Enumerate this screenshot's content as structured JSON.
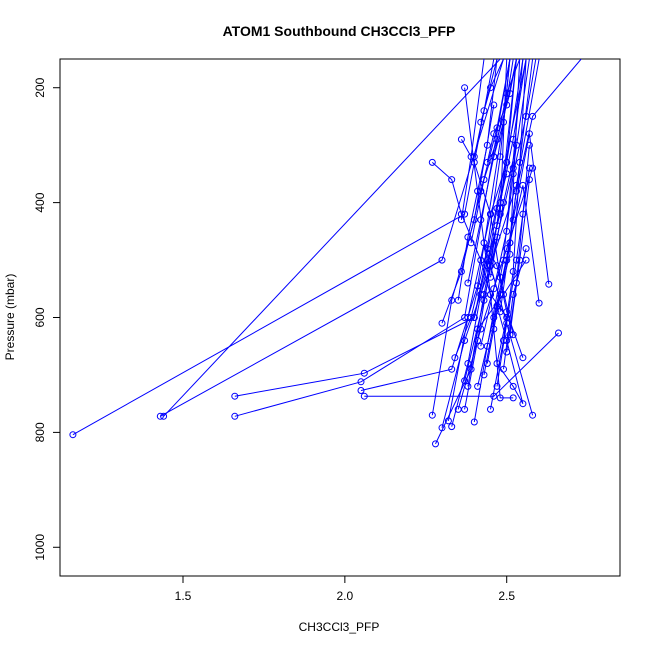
{
  "chart_data": {
    "type": "line",
    "title": "ATOM1 Southbound CH3CCl3_PFP",
    "xlabel": "CH3CCl3_PFP",
    "ylabel": "Pressure (mbar)",
    "xlim": [
      1.12,
      2.85
    ],
    "ylim": [
      1050,
      150
    ],
    "y_reversed": true,
    "x_ticks": [
      "1.5",
      "2.0",
      "2.5"
    ],
    "y_ticks": [
      "200",
      "400",
      "600",
      "800",
      "1000"
    ],
    "grid": false,
    "legend": "none",
    "series_color": "#0000ff",
    "series": [
      {
        "x": [
          2.27,
          2.33,
          2.36,
          2.42,
          2.45,
          2.5,
          2.47,
          2.52,
          2.55,
          2.5,
          2.47
        ],
        "y": [
          330,
          360,
          420,
          500,
          560,
          600,
          680,
          720,
          750,
          640,
          580
        ]
      },
      {
        "x": [
          1.16,
          2.37,
          2.46
        ],
        "y": [
          804,
          420,
          150
        ]
      },
      {
        "x": [
          1.43,
          2.3,
          2.49
        ],
        "y": [
          772,
          500,
          150
        ]
      },
      {
        "x": [
          1.44,
          2.48
        ],
        "y": [
          772,
          150
        ]
      },
      {
        "x": [
          1.66,
          2.05,
          2.37,
          2.51
        ],
        "y": [
          772,
          712,
          600,
          150
        ]
      },
      {
        "x": [
          1.66,
          2.06,
          2.4,
          2.56
        ],
        "y": [
          737,
          697,
          600,
          150
        ]
      },
      {
        "x": [
          2.05,
          2.33,
          2.41,
          2.52
        ],
        "y": [
          727,
          690,
          545,
          150
        ]
      },
      {
        "x": [
          2.06,
          2.46,
          2.66
        ],
        "y": [
          737,
          737,
          627
        ]
      },
      {
        "x": [
          2.28,
          2.39,
          2.43,
          2.48,
          2.53
        ],
        "y": [
          820,
          690,
          560,
          410,
          150
        ]
      },
      {
        "x": [
          2.3,
          2.37,
          2.45,
          2.53,
          2.6
        ],
        "y": [
          792,
          640,
          510,
          370,
          150
        ]
      },
      {
        "x": [
          2.27,
          2.33,
          2.4,
          2.46
        ],
        "y": [
          770,
          570,
          430,
          230
        ]
      },
      {
        "x": [
          2.32,
          2.38,
          2.45,
          2.5,
          2.55
        ],
        "y": [
          780,
          600,
          420,
          330,
          150
        ]
      },
      {
        "x": [
          2.3,
          2.36,
          2.42,
          2.47,
          2.51
        ],
        "y": [
          610,
          520,
          380,
          270,
          150
        ]
      },
      {
        "x": [
          2.35,
          2.42,
          2.5,
          2.58
        ],
        "y": [
          760,
          620,
          480,
          340
        ]
      },
      {
        "x": [
          2.37,
          2.43,
          2.47,
          2.52,
          2.57
        ],
        "y": [
          710,
          570,
          460,
          340,
          150
        ]
      },
      {
        "x": [
          2.4,
          2.44,
          2.49,
          2.55
        ],
        "y": [
          782,
          650,
          500,
          150
        ]
      },
      {
        "x": [
          2.41,
          2.46,
          2.51,
          2.54,
          2.58
        ],
        "y": [
          720,
          600,
          470,
          330,
          150
        ]
      },
      {
        "x": [
          2.44,
          2.48,
          2.52,
          2.57,
          2.63
        ],
        "y": [
          680,
          560,
          430,
          280,
          542
        ]
      },
      {
        "x": [
          2.46,
          2.5,
          2.53,
          2.58,
          2.73
        ],
        "y": [
          620,
          500,
          380,
          250,
          150
        ]
      },
      {
        "x": [
          2.48,
          2.51,
          2.55,
          2.6
        ],
        "y": [
          590,
          470,
          370,
          575
        ]
      },
      {
        "x": [
          2.37,
          2.41,
          2.45,
          2.48,
          2.52,
          2.56
        ],
        "y": [
          760,
          640,
          510,
          400,
          290,
          150
        ]
      },
      {
        "x": [
          2.33,
          2.38,
          2.42,
          2.47,
          2.5,
          2.53
        ],
        "y": [
          790,
          680,
          560,
          440,
          330,
          150
        ]
      },
      {
        "x": [
          2.34,
          2.39,
          2.44,
          2.48,
          2.51
        ],
        "y": [
          670,
          600,
          480,
          320,
          150
        ]
      },
      {
        "x": [
          2.35,
          2.38,
          2.41,
          2.44,
          2.47
        ],
        "y": [
          570,
          460,
          380,
          300,
          150
        ]
      },
      {
        "x": [
          2.38,
          2.42,
          2.46,
          2.5,
          2.54
        ],
        "y": [
          540,
          430,
          320,
          210,
          150
        ]
      },
      {
        "x": [
          2.39,
          2.43,
          2.47,
          2.51,
          2.53
        ],
        "y": [
          470,
          360,
          290,
          210,
          150
        ]
      },
      {
        "x": [
          2.4,
          2.44,
          2.48,
          2.5
        ],
        "y": [
          600,
          500,
          420,
          150
        ]
      },
      {
        "x": [
          2.42,
          2.46,
          2.5,
          2.52,
          2.56,
          2.59
        ],
        "y": [
          650,
          550,
          450,
          350,
          250,
          150
        ]
      },
      {
        "x": [
          2.43,
          2.47,
          2.51,
          2.54
        ],
        "y": [
          700,
          580,
          490,
          150
        ]
      },
      {
        "x": [
          2.45,
          2.49,
          2.52,
          2.56
        ],
        "y": [
          760,
          640,
          520,
          150
        ]
      },
      {
        "x": [
          2.47,
          2.5,
          2.53,
          2.57
        ],
        "y": [
          720,
          610,
          500,
          340
        ]
      },
      {
        "x": [
          2.49,
          2.52,
          2.56
        ],
        "y": [
          690,
          560,
          480
        ]
      },
      {
        "x": [
          2.5,
          2.53,
          2.55,
          2.57
        ],
        "y": [
          660,
          540,
          420,
          300
        ]
      },
      {
        "x": [
          2.51,
          2.54,
          2.57
        ],
        "y": [
          630,
          500,
          360
        ]
      },
      {
        "x": [
          2.44,
          2.46,
          2.5,
          2.53
        ],
        "y": [
          330,
          280,
          230,
          150
        ]
      },
      {
        "x": [
          2.42,
          2.45,
          2.49
        ],
        "y": [
          260,
          200,
          150
        ]
      },
      {
        "x": [
          2.4,
          2.43,
          2.47
        ],
        "y": [
          320,
          240,
          150
        ]
      },
      {
        "x": [
          2.46,
          2.49,
          2.51
        ],
        "y": [
          320,
          260,
          150
        ]
      },
      {
        "x": [
          2.36,
          2.39,
          2.43
        ],
        "y": [
          430,
          320,
          150
        ]
      },
      {
        "x": [
          2.37,
          2.45,
          2.48,
          2.52
        ],
        "y": [
          200,
          560,
          740,
          740
        ]
      },
      {
        "x": [
          2.55,
          2.5,
          2.47,
          2.43,
          2.58
        ],
        "y": [
          670,
          590,
          510,
          470,
          770
        ]
      },
      {
        "x": [
          2.52,
          2.48,
          2.45,
          2.4,
          2.36
        ],
        "y": [
          630,
          530,
          420,
          330,
          290
        ]
      },
      {
        "x": [
          2.45,
          2.49,
          2.53
        ],
        "y": [
          530,
          400,
          300
        ]
      },
      {
        "x": [
          2.44,
          2.47,
          2.5
        ],
        "y": [
          510,
          410,
          350
        ]
      },
      {
        "x": [
          2.38,
          2.41,
          2.49,
          2.56
        ],
        "y": [
          720,
          620,
          560,
          500
        ]
      }
    ]
  }
}
